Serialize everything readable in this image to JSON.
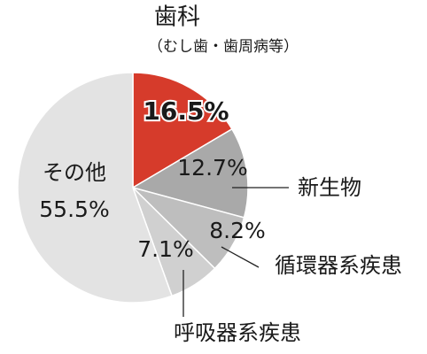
{
  "chart_data": {
    "type": "pie",
    "categories": [
      "歯科",
      "新生物",
      "循環器系疾患",
      "呼吸器系疾患",
      "その他"
    ],
    "annotations": [
      "（むし歯・歯周病等）"
    ],
    "values": [
      16.5,
      12.7,
      8.2,
      7.1,
      55.5
    ],
    "value_labels": [
      "16.5%",
      "12.7%",
      "8.2%",
      "7.1%",
      "55.5%"
    ],
    "colors": [
      "#d63b2b",
      "#a9a9a9",
      "#bebebe",
      "#d0d0d0",
      "#e3e3e3"
    ]
  }
}
